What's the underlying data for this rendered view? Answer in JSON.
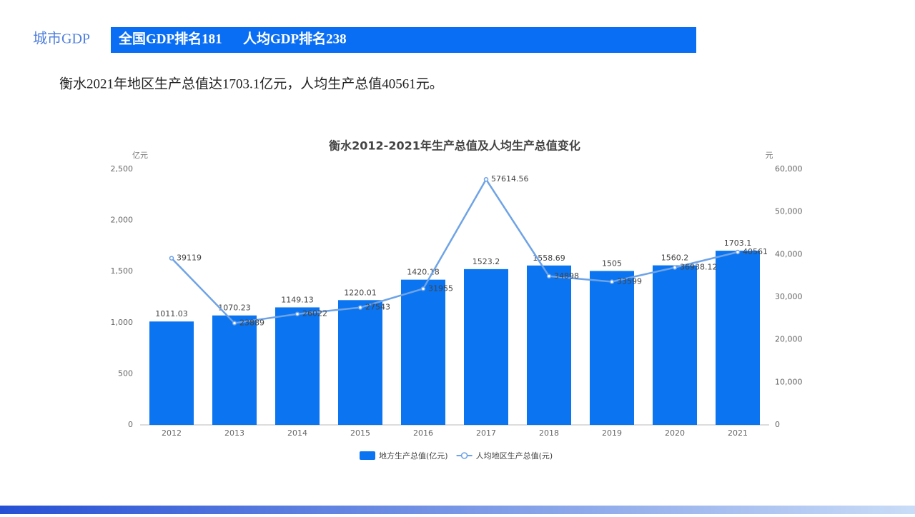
{
  "header": {
    "label": "城市GDP",
    "national_rank": "全国GDP排名181",
    "per_capita_rank": "人均GDP排名238"
  },
  "description": "衡水2021年地区生产总值达1703.1亿元，人均生产总值40561元。",
  "chart_data": {
    "type": "combo",
    "title": "衡水2012-2021年生产总值及人均生产总值变化",
    "y_label": "亿元",
    "y2_label": "元",
    "categories": [
      "2012",
      "2013",
      "2014",
      "2015",
      "2016",
      "2017",
      "2018",
      "2019",
      "2020",
      "2021"
    ],
    "series": [
      {
        "name": "地方生产总值(亿元)",
        "type": "bar",
        "color": "#0b74f0",
        "values": [
          1011.03,
          1070.23,
          1149.13,
          1220.01,
          1420.18,
          1523.2,
          1558.69,
          1505,
          1560.2,
          1703.1
        ]
      },
      {
        "name": "人均地区生产总值(元)",
        "type": "line",
        "axis": "y2",
        "color": "#6ea3e6",
        "values": [
          39119,
          23889,
          26022,
          27543,
          31955,
          57614.56,
          34898,
          33599,
          36938.12,
          40561
        ]
      }
    ],
    "ylim": [
      0,
      2500
    ],
    "yticks": [
      0,
      500,
      {
        "value": 1000,
        "label": "1,000"
      },
      {
        "value": 1500,
        "label": "1,500"
      },
      {
        "value": 2000,
        "label": "2,000"
      },
      {
        "value": 2500,
        "label": "2,500"
      }
    ],
    "y2lim": [
      0,
      60000
    ],
    "y2ticks": [
      0,
      {
        "value": 10000,
        "label": "10,000"
      },
      {
        "value": 20000,
        "label": "20,000"
      },
      {
        "value": 30000,
        "label": "30,000"
      },
      {
        "value": 40000,
        "label": "40,000"
      },
      {
        "value": 50000,
        "label": "50,000"
      },
      {
        "value": 60000,
        "label": "60,000"
      }
    ],
    "grid": false,
    "legend": "bottom"
  }
}
